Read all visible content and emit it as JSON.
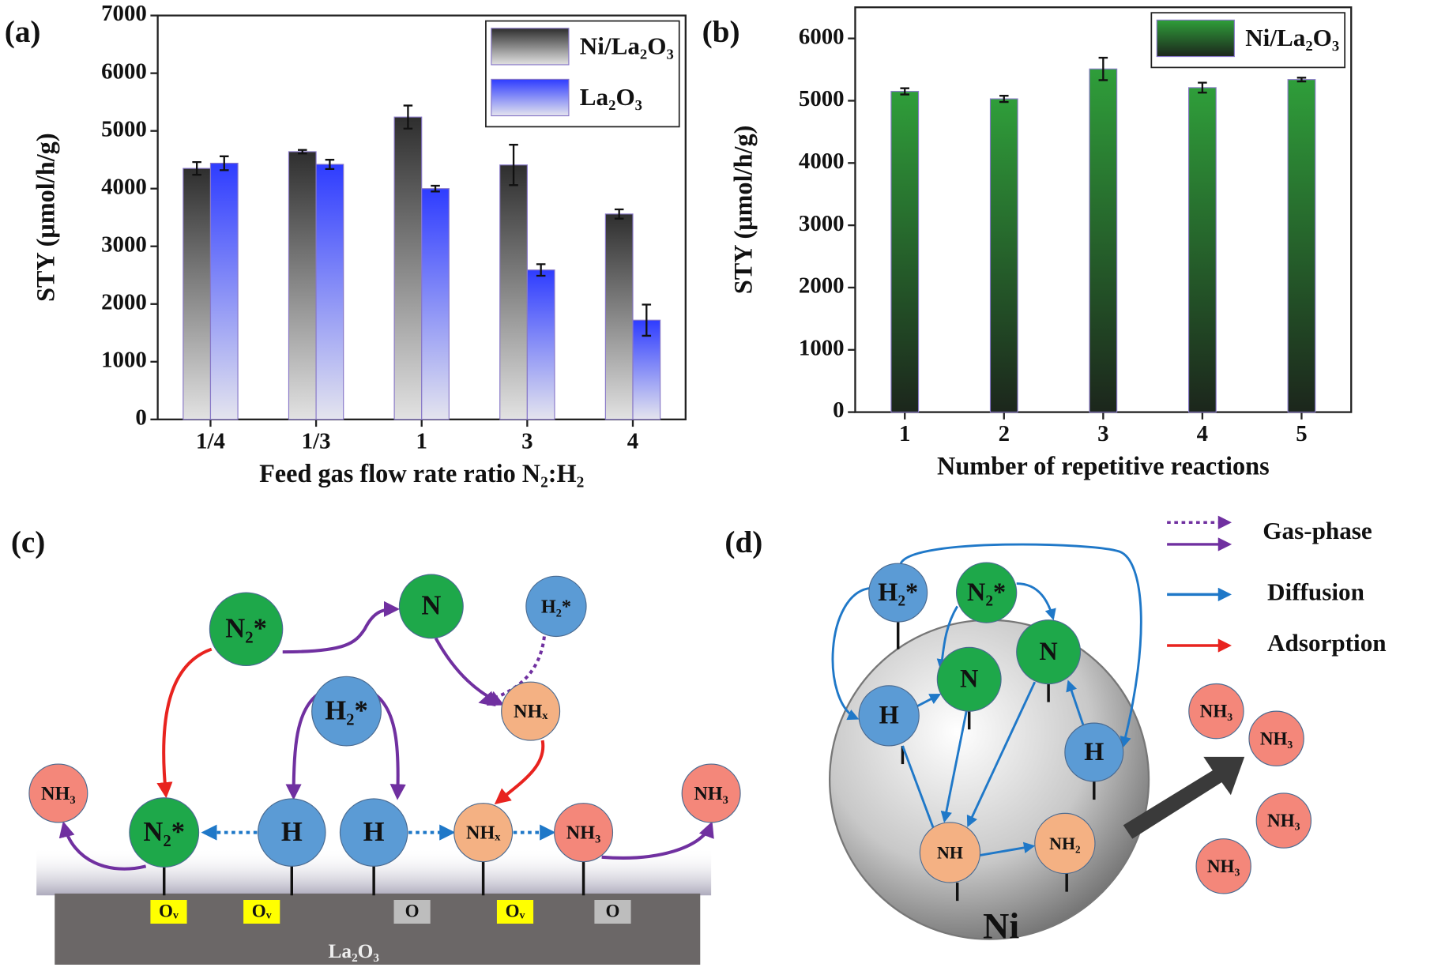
{
  "chart_data": [
    {
      "type": "bar",
      "panel_label": "(a)",
      "x_label": "Feed gas flow rate ratio N₂:H₂",
      "y_label": "STY (μmol/h/g)",
      "categories": [
        "1/4",
        "1/3",
        "1",
        "3",
        "4"
      ],
      "series": [
        {
          "name": "Ni/La₂O₃",
          "color": "#2e2e2e",
          "gradient_end": "#e2e2e2",
          "values": [
            4350,
            4640,
            5240,
            4410,
            3560
          ],
          "errors": [
            110,
            30,
            200,
            350,
            80
          ]
        },
        {
          "name": "La₂O₃",
          "color": "#2e3cff",
          "gradient_end": "#e4e4ee",
          "values": [
            4440,
            4420,
            4000,
            2590,
            1720
          ],
          "errors": [
            120,
            80,
            50,
            100,
            270
          ]
        }
      ],
      "ylim": [
        0,
        7000
      ],
      "yticks": [
        0,
        1000,
        2000,
        3000,
        4000,
        5000,
        6000,
        7000
      ],
      "legend": "upper right"
    },
    {
      "type": "bar",
      "panel_label": "(b)",
      "x_label": "Number of repetitive reactions",
      "y_label": "STY (μmol/h/g)",
      "categories": [
        "1",
        "2",
        "3",
        "4",
        "5"
      ],
      "series": [
        {
          "name": "Ni/La₂O₃",
          "color": "#2f9e3a",
          "gradient_end": "#1c261c",
          "values": [
            5150,
            5030,
            5510,
            5210,
            5340
          ],
          "errors": [
            50,
            50,
            180,
            80,
            30
          ]
        }
      ],
      "ylim": [
        0,
        6500
      ],
      "yticks": [
        0,
        1000,
        2000,
        3000,
        4000,
        5000,
        6000
      ],
      "legend": "upper right"
    }
  ],
  "diagrams": [
    {
      "panel_label": "(c)",
      "nodes": [
        "N₂*",
        "N",
        "H₂*",
        "NHₓ",
        "H₂*",
        "NH₃",
        "N₂*",
        "H",
        "H",
        "NHₓ",
        "NH₃",
        "NH₃"
      ],
      "sites": [
        "Oᵥ",
        "Oᵥ",
        "O",
        "Oᵥ",
        "O"
      ],
      "support": "La₂O₃"
    },
    {
      "panel_label": "(d)",
      "legend": [
        "Gas-phase",
        "Diffusion",
        "Adsorption"
      ],
      "nodes": [
        "H₂*",
        "N₂*",
        "N",
        "N",
        "H",
        "H",
        "NH",
        "NH₂"
      ],
      "particle": "Ni",
      "products": [
        "NH₃",
        "NH₃",
        "NH₃",
        "NH₃"
      ]
    }
  ]
}
